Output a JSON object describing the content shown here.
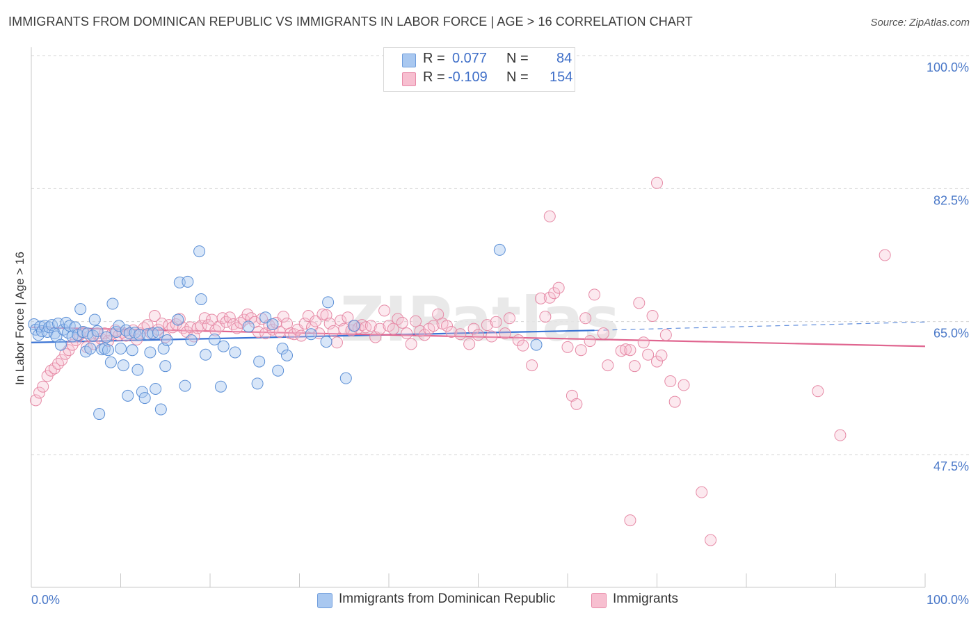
{
  "header": {
    "title": "IMMIGRANTS FROM DOMINICAN REPUBLIC VS IMMIGRANTS IN LABOR FORCE | AGE > 16 CORRELATION CHART",
    "source": "Source: ZipAtlas.com"
  },
  "legend": {
    "rows": [
      {
        "r_label": "R =",
        "r_value": "0.077",
        "n_label": "N =",
        "n_value": "84",
        "color": "#a9c8f0",
        "border": "#6f9ddc"
      },
      {
        "r_label": "R =",
        "r_value": "-0.109",
        "n_label": "N =",
        "n_value": "154",
        "color": "#f7bfd0",
        "border": "#e88aa8"
      }
    ]
  },
  "bottom_legend": {
    "series1": "Immigrants from Dominican Republic",
    "series2": "Immigrants"
  },
  "colors": {
    "blue_fill": "#a9c8f0",
    "blue_stroke": "#5b8fd6",
    "blue_line": "#3a73d4",
    "pink_fill": "#f7bfd0",
    "pink_stroke": "#e68aa6",
    "pink_line": "#e06690",
    "axis_text": "#4a78c8",
    "grid": "#d4d4d4"
  },
  "watermark": "ZIPatlas",
  "chart_data": {
    "type": "scatter",
    "title": "IMMIGRANTS FROM DOMINICAN REPUBLIC VS IMMIGRANTS IN LABOR FORCE | AGE > 16 CORRELATION CHART",
    "xlabel": "",
    "ylabel": "In Labor Force | Age > 16",
    "xlim": [
      0,
      100
    ],
    "ylim": [
      30,
      100
    ],
    "x_tick_labels": [
      "0.0%",
      "100.0%"
    ],
    "y_ticks": [
      47.5,
      65.0,
      82.5,
      100.0
    ],
    "y_tick_labels": [
      "47.5%",
      "65.0%",
      "82.5%",
      "100.0%"
    ],
    "grid": true,
    "legend_position": "top-center",
    "series": [
      {
        "name": "Immigrants from Dominican Republic",
        "R": 0.077,
        "N": 84,
        "trend": {
          "x0": 0,
          "y0": 63.8,
          "x1": 63,
          "y1": 65.4,
          "dashed_to_x": 100,
          "dashed_to_y": 66.5
        },
        "points": [
          [
            0.3,
            66.2
          ],
          [
            0.5,
            65.5
          ],
          [
            0.8,
            64.8
          ],
          [
            1.0,
            65.9
          ],
          [
            1.2,
            65.3
          ],
          [
            1.5,
            66.0
          ],
          [
            1.8,
            65.2
          ],
          [
            2.0,
            65.8
          ],
          [
            2.3,
            66.1
          ],
          [
            2.6,
            65.0
          ],
          [
            2.8,
            64.6
          ],
          [
            3.0,
            66.3
          ],
          [
            3.3,
            63.5
          ],
          [
            3.6,
            65.5
          ],
          [
            3.9,
            66.4
          ],
          [
            4.1,
            65.1
          ],
          [
            4.3,
            66.0
          ],
          [
            4.6,
            64.6
          ],
          [
            4.9,
            65.8
          ],
          [
            5.2,
            64.8
          ],
          [
            5.5,
            68.2
          ],
          [
            5.8,
            65.2
          ],
          [
            6.1,
            62.6
          ],
          [
            6.3,
            65.0
          ],
          [
            6.6,
            63.0
          ],
          [
            6.9,
            64.7
          ],
          [
            7.1,
            66.8
          ],
          [
            7.4,
            65.3
          ],
          [
            7.6,
            54.4
          ],
          [
            7.9,
            62.9
          ],
          [
            8.2,
            63.0
          ],
          [
            8.4,
            64.5
          ],
          [
            8.6,
            62.8
          ],
          [
            8.9,
            61.2
          ],
          [
            9.1,
            68.9
          ],
          [
            9.5,
            65.2
          ],
          [
            9.8,
            66.0
          ],
          [
            10.0,
            63.0
          ],
          [
            10.3,
            60.8
          ],
          [
            10.6,
            65.4
          ],
          [
            10.8,
            56.8
          ],
          [
            11.0,
            65.0
          ],
          [
            11.3,
            62.8
          ],
          [
            11.6,
            65.1
          ],
          [
            11.9,
            60.2
          ],
          [
            12.1,
            64.8
          ],
          [
            12.4,
            57.3
          ],
          [
            12.7,
            56.5
          ],
          [
            13.0,
            64.9
          ],
          [
            13.3,
            62.5
          ],
          [
            13.6,
            65.0
          ],
          [
            13.9,
            57.7
          ],
          [
            14.2,
            65.1
          ],
          [
            14.5,
            55.0
          ],
          [
            14.8,
            63.0
          ],
          [
            15.0,
            60.7
          ],
          [
            15.2,
            64.1
          ],
          [
            16.4,
            66.8
          ],
          [
            16.6,
            71.7
          ],
          [
            17.2,
            58.1
          ],
          [
            17.5,
            71.8
          ],
          [
            17.9,
            64.1
          ],
          [
            18.8,
            75.8
          ],
          [
            19.0,
            69.5
          ],
          [
            19.5,
            62.2
          ],
          [
            20.5,
            64.2
          ],
          [
            21.2,
            58.0
          ],
          [
            21.5,
            63.3
          ],
          [
            22.8,
            62.5
          ],
          [
            24.3,
            65.9
          ],
          [
            25.3,
            58.4
          ],
          [
            25.5,
            61.3
          ],
          [
            26.2,
            67.1
          ],
          [
            27.0,
            66.2
          ],
          [
            27.6,
            60.1
          ],
          [
            28.1,
            63.0
          ],
          [
            28.6,
            62.1
          ],
          [
            31.3,
            64.9
          ],
          [
            33.2,
            69.1
          ],
          [
            33.0,
            63.9
          ],
          [
            35.2,
            59.1
          ],
          [
            36.1,
            66.0
          ],
          [
            52.4,
            76.0
          ],
          [
            56.5,
            63.5
          ]
        ]
      },
      {
        "name": "Immigrants",
        "R": -0.109,
        "N": 154,
        "trend": {
          "x0": 0,
          "y0": 65.8,
          "x1": 100,
          "y1": 63.3
        },
        "points": [
          [
            0.5,
            56.2
          ],
          [
            0.9,
            57.2
          ],
          [
            1.3,
            58.0
          ],
          [
            1.8,
            59.4
          ],
          [
            2.2,
            60.1
          ],
          [
            2.6,
            60.4
          ],
          [
            3.0,
            61.0
          ],
          [
            3.4,
            61.5
          ],
          [
            3.8,
            62.3
          ],
          [
            4.2,
            62.8
          ],
          [
            4.6,
            63.5
          ],
          [
            5.0,
            64.1
          ],
          [
            5.4,
            64.8
          ],
          [
            5.8,
            65.1
          ],
          [
            6.2,
            63.2
          ],
          [
            6.6,
            64.7
          ],
          [
            7.0,
            63.6
          ],
          [
            7.4,
            65.0
          ],
          [
            7.8,
            64.3
          ],
          [
            8.2,
            65.0
          ],
          [
            8.6,
            64.0
          ],
          [
            9.0,
            64.9
          ],
          [
            9.4,
            65.4
          ],
          [
            9.8,
            64.8
          ],
          [
            10.2,
            65.1
          ],
          [
            10.6,
            64.7
          ],
          [
            11.0,
            65.0
          ],
          [
            11.4,
            65.4
          ],
          [
            11.8,
            64.2
          ],
          [
            12.2,
            65.0
          ],
          [
            12.6,
            65.7
          ],
          [
            13.0,
            66.1
          ],
          [
            13.4,
            65.0
          ],
          [
            13.8,
            67.3
          ],
          [
            14.2,
            65.5
          ],
          [
            14.6,
            66.3
          ],
          [
            15.0,
            64.5
          ],
          [
            15.4,
            66.1
          ],
          [
            15.8,
            65.8
          ],
          [
            16.2,
            66.2
          ],
          [
            16.6,
            66.9
          ],
          [
            17.0,
            65.7
          ],
          [
            17.4,
            65.2
          ],
          [
            17.8,
            65.8
          ],
          [
            18.2,
            64.6
          ],
          [
            18.6,
            65.7
          ],
          [
            19.0,
            66.0
          ],
          [
            19.4,
            67.0
          ],
          [
            19.8,
            66.1
          ],
          [
            20.2,
            66.8
          ],
          [
            20.6,
            65.4
          ],
          [
            21.0,
            65.9
          ],
          [
            21.4,
            67.0
          ],
          [
            21.8,
            66.5
          ],
          [
            22.2,
            67.1
          ],
          [
            22.6,
            66.2
          ],
          [
            23.0,
            65.7
          ],
          [
            23.4,
            66.4
          ],
          [
            23.8,
            66.8
          ],
          [
            24.2,
            67.5
          ],
          [
            24.6,
            67.0
          ],
          [
            25.0,
            66.5
          ],
          [
            25.4,
            65.2
          ],
          [
            25.8,
            66.9
          ],
          [
            26.2,
            65.0
          ],
          [
            26.6,
            66.1
          ],
          [
            27.0,
            65.5
          ],
          [
            27.4,
            66.4
          ],
          [
            27.8,
            65.2
          ],
          [
            28.2,
            67.2
          ],
          [
            28.6,
            66.3
          ],
          [
            29.0,
            65.0
          ],
          [
            29.4,
            64.9
          ],
          [
            29.8,
            65.5
          ],
          [
            30.2,
            64.7
          ],
          [
            30.6,
            66.3
          ],
          [
            31.0,
            67.3
          ],
          [
            31.4,
            65.8
          ],
          [
            31.8,
            66.6
          ],
          [
            32.2,
            65.0
          ],
          [
            32.6,
            67.5
          ],
          [
            33.0,
            67.4
          ],
          [
            33.4,
            66.3
          ],
          [
            33.8,
            65.3
          ],
          [
            34.2,
            63.8
          ],
          [
            34.6,
            66.7
          ],
          [
            35.0,
            65.6
          ],
          [
            35.4,
            67.1
          ],
          [
            35.8,
            65.4
          ],
          [
            36.2,
            66.0
          ],
          [
            36.6,
            65.7
          ],
          [
            37.0,
            66.1
          ],
          [
            37.4,
            65.8
          ],
          [
            38.0,
            66.0
          ],
          [
            38.5,
            64.5
          ],
          [
            39.0,
            65.6
          ],
          [
            39.5,
            68.0
          ],
          [
            40.0,
            66.0
          ],
          [
            40.5,
            65.6
          ],
          [
            41.0,
            66.9
          ],
          [
            41.5,
            66.4
          ],
          [
            42.0,
            65.0
          ],
          [
            42.5,
            63.6
          ],
          [
            43.0,
            66.6
          ],
          [
            43.5,
            65.3
          ],
          [
            44.0,
            64.8
          ],
          [
            44.5,
            65.6
          ],
          [
            45.0,
            66.0
          ],
          [
            45.5,
            67.5
          ],
          [
            46.0,
            66.3
          ],
          [
            46.5,
            66.0
          ],
          [
            47.0,
            65.2
          ],
          [
            48.0,
            64.9
          ],
          [
            49.0,
            63.6
          ],
          [
            49.5,
            65.6
          ],
          [
            50.0,
            64.8
          ],
          [
            51.0,
            66.1
          ],
          [
            51.5,
            64.6
          ],
          [
            52.0,
            66.5
          ],
          [
            53.0,
            65.0
          ],
          [
            53.5,
            67.0
          ],
          [
            54.5,
            64.1
          ],
          [
            55.0,
            63.4
          ],
          [
            56.0,
            60.8
          ],
          [
            57.0,
            69.6
          ],
          [
            57.5,
            67.2
          ],
          [
            58.0,
            69.7
          ],
          [
            58.5,
            70.3
          ],
          [
            59.0,
            71.0
          ],
          [
            60.0,
            63.2
          ],
          [
            60.5,
            56.8
          ],
          [
            61.0,
            55.7
          ],
          [
            61.5,
            62.8
          ],
          [
            62.0,
            67.0
          ],
          [
            62.5,
            64.0
          ],
          [
            63.0,
            70.1
          ],
          [
            64.0,
            65.0
          ],
          [
            64.5,
            60.8
          ],
          [
            66.0,
            62.7
          ],
          [
            66.5,
            62.9
          ],
          [
            67.0,
            62.8
          ],
          [
            67.5,
            60.7
          ],
          [
            68.0,
            69.0
          ],
          [
            68.5,
            63.8
          ],
          [
            69.0,
            62.2
          ],
          [
            69.5,
            67.3
          ],
          [
            70.0,
            61.3
          ],
          [
            70.5,
            62.1
          ],
          [
            71.0,
            64.8
          ],
          [
            71.5,
            58.7
          ],
          [
            72.0,
            56.0
          ],
          [
            73.0,
            58.2
          ],
          [
            70.0,
            84.8
          ],
          [
            58.0,
            80.4
          ],
          [
            75.0,
            44.1
          ],
          [
            76.0,
            37.8
          ],
          [
            67.0,
            40.4
          ],
          [
            90.5,
            51.6
          ],
          [
            88.0,
            57.4
          ],
          [
            95.5,
            75.3
          ]
        ]
      }
    ]
  }
}
